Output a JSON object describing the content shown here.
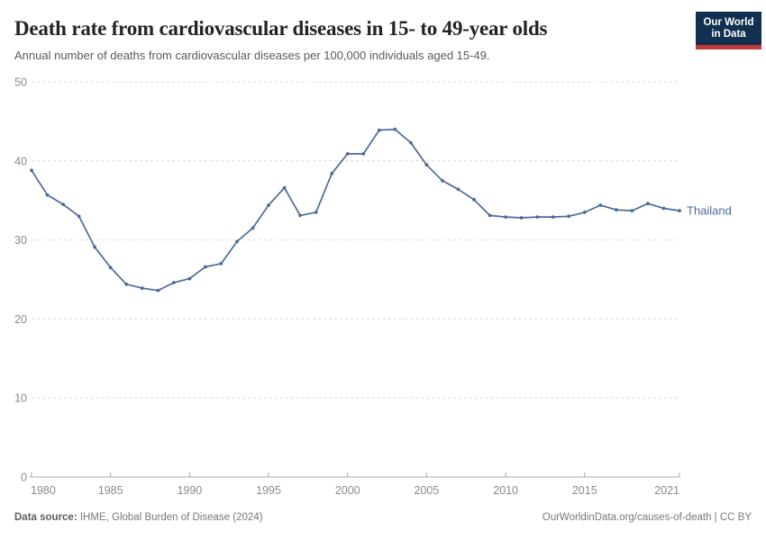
{
  "logo": {
    "line1": "Our World",
    "line2": "in Data",
    "bg_color": "#12304F",
    "accent_color": "#C03A3A"
  },
  "footer": {
    "source_label": "Data source:",
    "source_text": " IHME, Global Burden of Disease (2024)",
    "link_text": "OurWorldinData.org/causes-of-death | CC BY"
  },
  "chart_data": {
    "type": "line",
    "title": "Death rate from cardiovascular diseases in 15- to 49-year olds",
    "subtitle": "Annual number of deaths from cardiovascular diseases per 100,000 individuals aged 15-49.",
    "x": [
      1980,
      1981,
      1982,
      1983,
      1984,
      1985,
      1986,
      1987,
      1988,
      1989,
      1990,
      1991,
      1992,
      1993,
      1994,
      1995,
      1996,
      1997,
      1998,
      1999,
      2000,
      2001,
      2002,
      2003,
      2004,
      2005,
      2006,
      2007,
      2008,
      2009,
      2010,
      2011,
      2012,
      2013,
      2014,
      2015,
      2016,
      2017,
      2018,
      2019,
      2020,
      2021
    ],
    "series": [
      {
        "name": "Thailand",
        "color": "#4C6A9C",
        "values": [
          38.8,
          35.7,
          34.5,
          33.0,
          29.1,
          26.5,
          24.4,
          23.9,
          23.6,
          24.6,
          25.1,
          26.6,
          27.0,
          29.8,
          31.5,
          34.4,
          36.6,
          33.1,
          33.5,
          38.4,
          40.9,
          40.9,
          43.9,
          44.0,
          42.3,
          39.5,
          37.5,
          36.4,
          35.1,
          33.1,
          32.9,
          32.8,
          32.9,
          32.9,
          33.0,
          33.5,
          34.4,
          33.8,
          33.7,
          34.6,
          34.0,
          33.7
        ]
      }
    ],
    "xlabel": "",
    "ylabel": "",
    "ylim": [
      0,
      50
    ],
    "yticks": [
      0,
      10,
      20,
      30,
      40,
      50
    ],
    "xticks": [
      1980,
      1985,
      1990,
      1995,
      2000,
      2005,
      2010,
      2015,
      2021
    ],
    "grid": "horizontal-dashed",
    "legend_position": "end-of-line-label",
    "marker": "point",
    "grid_color": "#dcdcdc",
    "axis_color": "#a8a8a8",
    "tick_label_color": "#8a8a8a"
  }
}
